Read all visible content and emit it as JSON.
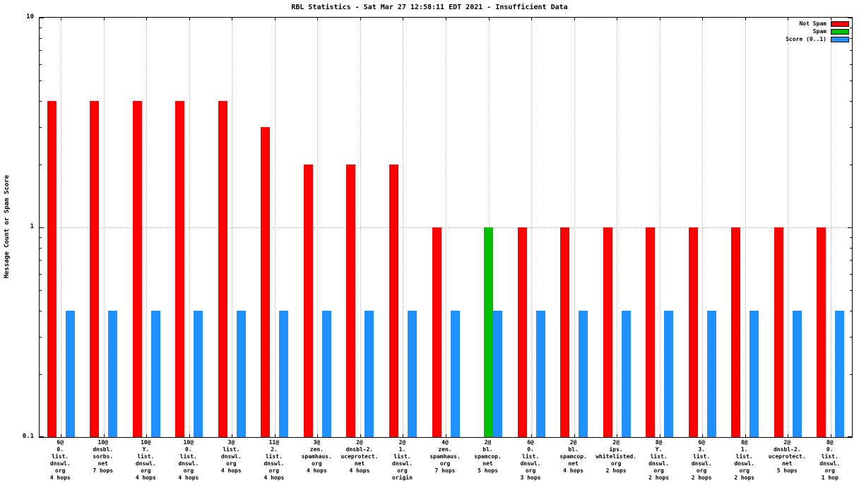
{
  "chart_data": {
    "type": "bar",
    "title": "RBL Statistics - Sat Mar 27 12:58:11 EDT 2021 - Insufficient Data",
    "ylabel": "Message Count or Spam Score",
    "yscale": "log",
    "ylim": [
      0.1,
      10
    ],
    "yticks": [
      {
        "label": "10",
        "value": 10
      },
      {
        "label": "1",
        "value": 1
      },
      {
        "label": "0.1",
        "value": 0.1
      }
    ],
    "grid": {
      "vertical_per_category": true,
      "horizontal_at": 1
    },
    "legend_position": "top-right",
    "categories": [
      {
        "lines": [
          "6@",
          "0.",
          "list.",
          "dnswl.",
          "org",
          "4 hops"
        ]
      },
      {
        "lines": [
          "10@",
          "dnsbl.",
          "sorbs.",
          "net",
          "7 hops"
        ]
      },
      {
        "lines": [
          "10@",
          "Y.",
          "list.",
          "dnswl.",
          "org",
          "4 hops"
        ]
      },
      {
        "lines": [
          "10@",
          "0.",
          "list.",
          "dnswl.",
          "org",
          "4 hops"
        ]
      },
      {
        "lines": [
          "3@",
          "list.",
          "dnswl.",
          "org",
          "4 hops"
        ]
      },
      {
        "lines": [
          "11@",
          "2.",
          "list.",
          "dnswl.",
          "org",
          "4 hops"
        ]
      },
      {
        "lines": [
          "3@",
          "zen.",
          "spamhaus.",
          "org",
          "4 hops"
        ]
      },
      {
        "lines": [
          "2@",
          "dnsbl-2.",
          "uceprotect.",
          "net",
          "4 hops"
        ]
      },
      {
        "lines": [
          "2@",
          "1.",
          "list.",
          "dnswl.",
          "org",
          "origin"
        ]
      },
      {
        "lines": [
          "4@",
          "zen.",
          "spamhaus.",
          "org",
          "7 hops"
        ]
      },
      {
        "lines": [
          "2@",
          "bl.",
          "spamcop.",
          "net",
          "5 hops"
        ]
      },
      {
        "lines": [
          "6@",
          "0.",
          "list.",
          "dnswl.",
          "org",
          "3 hops"
        ]
      },
      {
        "lines": [
          "2@",
          "bl.",
          "spamcop.",
          "net",
          "4 hops"
        ]
      },
      {
        "lines": [
          "2@",
          "ips.",
          "whitelisted.",
          "org",
          "2 hops"
        ]
      },
      {
        "lines": [
          "8@",
          "Y.",
          "list.",
          "dnswl.",
          "org",
          "2 hops"
        ]
      },
      {
        "lines": [
          "6@",
          "3.",
          "list.",
          "dnswl.",
          "org",
          "2 hops"
        ]
      },
      {
        "lines": [
          "8@",
          "1.",
          "list.",
          "dnswl.",
          "org",
          "2 hops"
        ]
      },
      {
        "lines": [
          "2@",
          "dnsbl-2.",
          "uceprotect.",
          "net",
          "5 hops"
        ]
      },
      {
        "lines": [
          "8@",
          "0.",
          "list.",
          "dnswl.",
          "org",
          "1 hop"
        ]
      }
    ],
    "series": [
      {
        "name": "Not Spam",
        "color": "#ff0000",
        "values": [
          4,
          4,
          4,
          4,
          4,
          3,
          2,
          2,
          2,
          1,
          0,
          1,
          1,
          1,
          1,
          1,
          1,
          1,
          1
        ]
      },
      {
        "name": "Spam",
        "color": "#00c000",
        "values": [
          0,
          0,
          0,
          0,
          0,
          0,
          0,
          0,
          0,
          0,
          1,
          0,
          0,
          0,
          0,
          0,
          0,
          0,
          0
        ]
      },
      {
        "name": "Score (0..1)",
        "color": "#1e90ff",
        "values": [
          0.4,
          0.4,
          0.4,
          0.4,
          0.4,
          0.4,
          0.4,
          0.4,
          0.4,
          0.4,
          0.4,
          0.4,
          0.4,
          0.4,
          0.4,
          0.4,
          0.4,
          0.4,
          0.4
        ]
      }
    ]
  }
}
